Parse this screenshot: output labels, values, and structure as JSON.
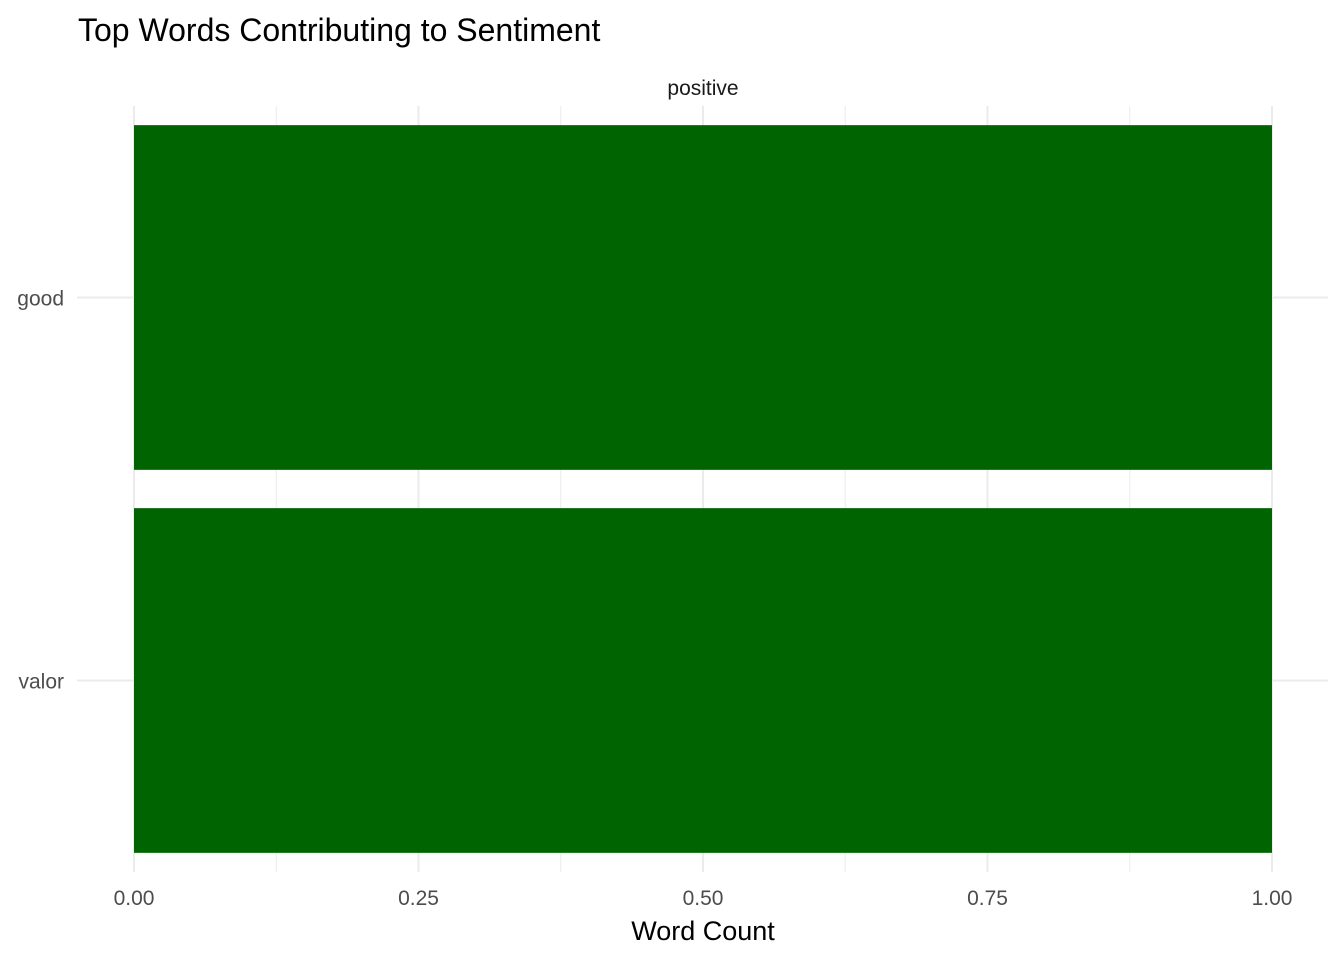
{
  "chart_data": {
    "type": "bar",
    "orientation": "horizontal",
    "title": "Top Words Contributing to Sentiment",
    "facet": "positive",
    "categories": [
      "valor",
      "good"
    ],
    "values": [
      1,
      1
    ],
    "xlabel": "Word Count",
    "ylabel": "",
    "xlim": [
      0,
      1
    ],
    "xticks": [
      "0.00",
      "0.25",
      "0.50",
      "0.75",
      "1.00"
    ],
    "bar_color": "#006400",
    "grid": true,
    "legend": "none"
  }
}
